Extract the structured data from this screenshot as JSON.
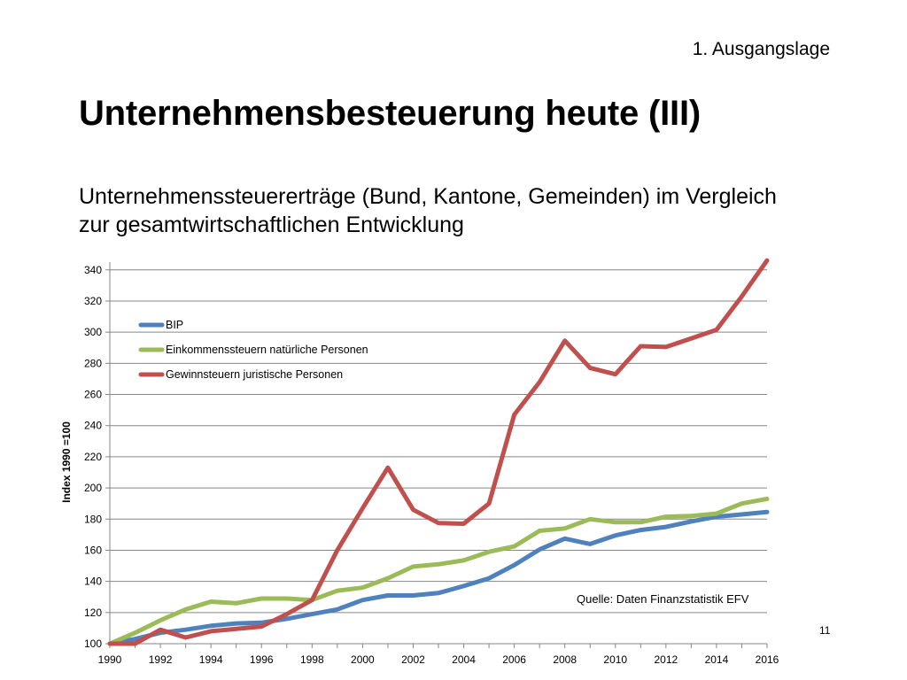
{
  "header": {
    "section": "1. Ausgangslage",
    "title": "Unternehmensbesteuerung heute (III)",
    "subtitle": "Unternehmenssteuererträge (Bund, Kantone, Gemeinden) im Vergleich zur gesamtwirtschaftlichen Entwicklung"
  },
  "page_number": "11",
  "chart_data": {
    "type": "line",
    "title": "",
    "xlabel": "",
    "ylabel": "Index 1990 =100",
    "source_note": "Quelle: Daten Finanzstatistik EFV",
    "x": [
      1990,
      1991,
      1992,
      1993,
      1994,
      1995,
      1996,
      1997,
      1998,
      1999,
      2000,
      2001,
      2002,
      2003,
      2004,
      2005,
      2006,
      2007,
      2008,
      2009,
      2010,
      2011,
      2012,
      2013,
      2014,
      2015,
      2016
    ],
    "xticks": [
      "1990",
      "1992",
      "1994",
      "1996",
      "1998",
      "2000",
      "2002",
      "2004",
      "2006",
      "2008",
      "2010",
      "2012",
      "2014",
      "2016"
    ],
    "ylim": [
      100,
      345
    ],
    "yticks": [
      100,
      120,
      140,
      160,
      180,
      200,
      220,
      240,
      260,
      280,
      300,
      320,
      340
    ],
    "grid": "horizontal",
    "legend_position": "top-left",
    "series": [
      {
        "name": "BIP",
        "color": "#4f81bd",
        "values": [
          100,
          103,
          107,
          109,
          111.5,
          113,
          113.5,
          116,
          119,
          122,
          128,
          131,
          131,
          132.5,
          137,
          142,
          150.5,
          160.5,
          167.5,
          164,
          169.5,
          173,
          175,
          178.5,
          181.5,
          183,
          184.5
        ]
      },
      {
        "name": "Einkommenssteuern natürliche Personen",
        "color": "#9bbb59",
        "values": [
          100,
          107,
          115,
          122,
          127,
          126,
          129,
          129,
          128,
          134,
          136,
          142,
          149.5,
          151,
          153.5,
          159,
          162.5,
          172.5,
          174,
          180,
          178,
          178,
          181.5,
          182,
          183.5,
          190,
          193
        ]
      },
      {
        "name": "Gewinnsteuern juristische Personen",
        "color": "#c0504d",
        "values": [
          100,
          100,
          109,
          104,
          108,
          109.5,
          111,
          119,
          128,
          160,
          187,
          213,
          186,
          177.5,
          177,
          190,
          247,
          268,
          294.5,
          277,
          273,
          291,
          290.5,
          296,
          301.5,
          323,
          346
        ]
      }
    ]
  }
}
